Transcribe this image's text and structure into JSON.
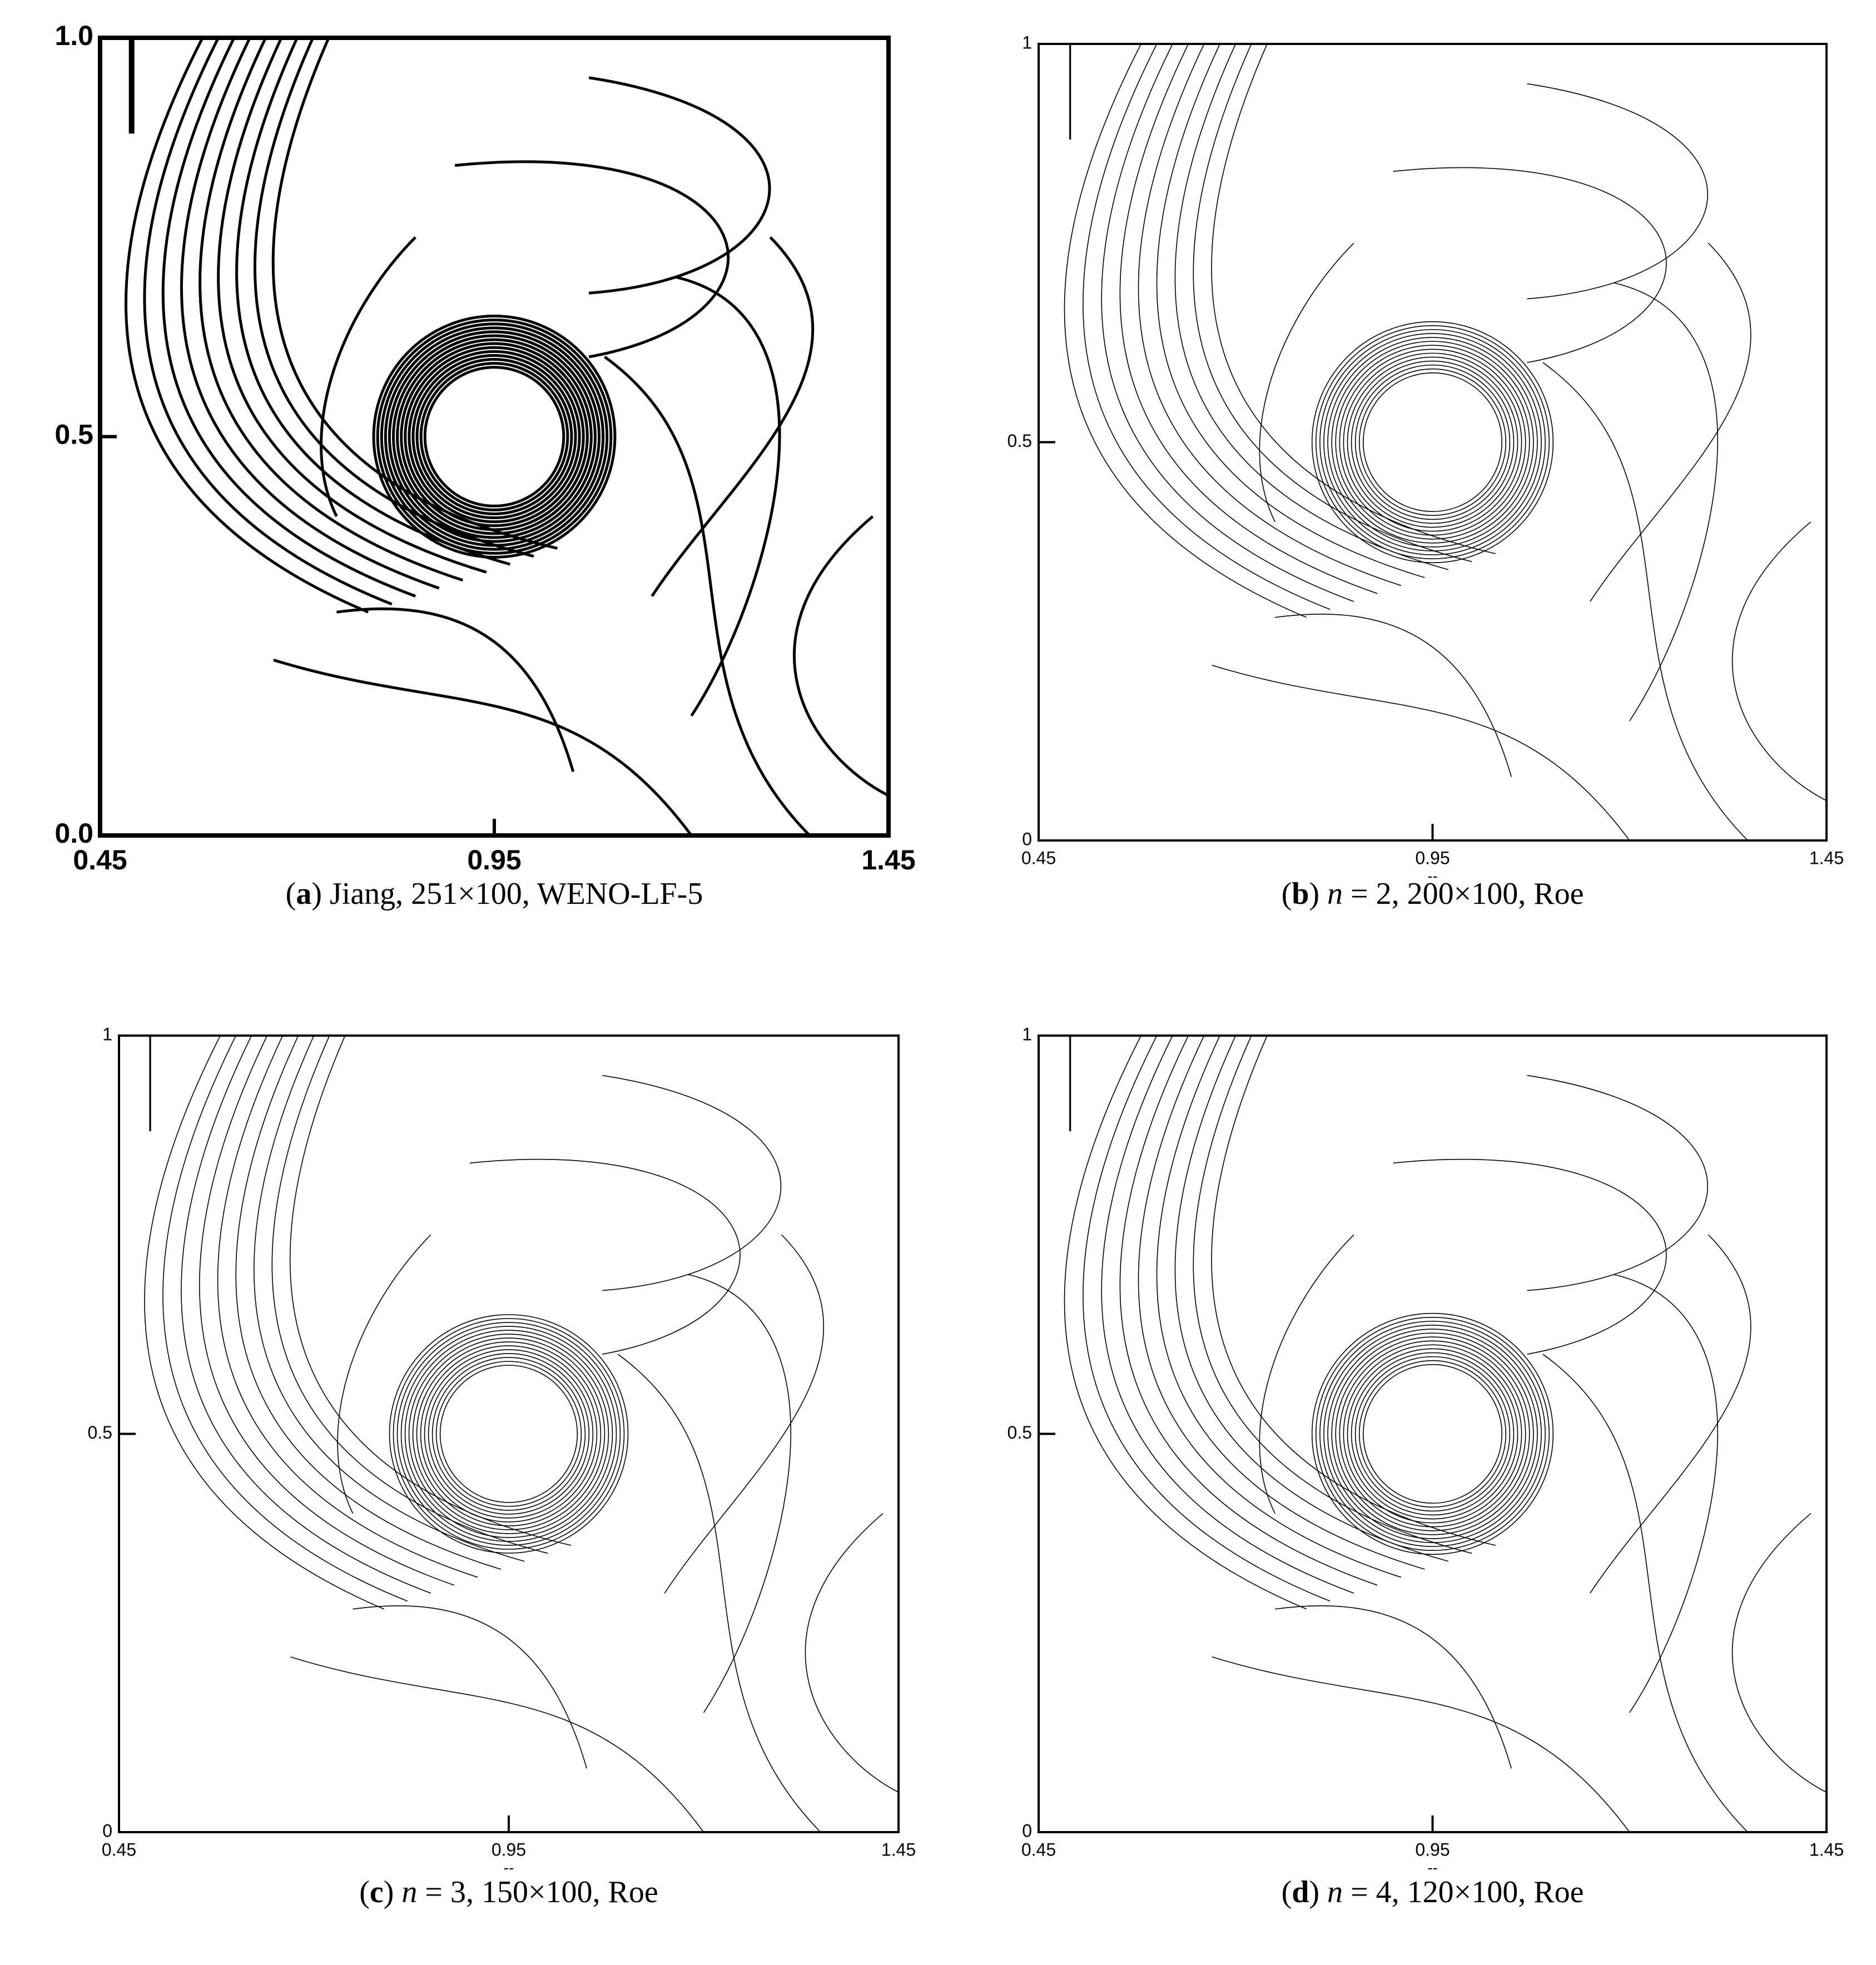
{
  "chart_data": [
    {
      "type": "contour",
      "xlim": [
        0.45,
        1.45
      ],
      "ylim": [
        0,
        1
      ],
      "xticks": [
        0.45,
        0.95,
        1.45
      ],
      "yticks": [
        {
          "value": 0,
          "label": "0.0"
        },
        {
          "value": 0.5,
          "label": "0.5"
        },
        {
          "value": 1,
          "label": "1.0"
        }
      ],
      "tick_font_weight": "bold",
      "caption": [
        {
          "text": "("
        },
        {
          "text": "a",
          "style": "bold"
        },
        {
          "text": ") Jiang, 251×100, WENO-LF-5"
        }
      ]
    },
    {
      "type": "contour",
      "xlim": [
        0.45,
        1.45
      ],
      "ylim": [
        0,
        1
      ],
      "xticks": [
        0.45,
        0.95,
        1.45
      ],
      "yticks": [
        0,
        0.5,
        1
      ],
      "xlabel": "--",
      "tick_font_weight": "normal",
      "caption": [
        {
          "text": "("
        },
        {
          "text": "b",
          "style": "bold"
        },
        {
          "text": ") "
        },
        {
          "text": "n",
          "style": "italic"
        },
        {
          "text": " = 2, 200×100, Roe"
        }
      ]
    },
    {
      "type": "contour",
      "xlim": [
        0.45,
        1.45
      ],
      "ylim": [
        0,
        1
      ],
      "xticks": [
        0.45,
        0.95,
        1.45
      ],
      "yticks": [
        0,
        0.5,
        1
      ],
      "xlabel": "--",
      "tick_font_weight": "normal",
      "caption": [
        {
          "text": "("
        },
        {
          "text": "c",
          "style": "bold"
        },
        {
          "text": ") "
        },
        {
          "text": "n",
          "style": "italic"
        },
        {
          "text": " = 3, 150×100, Roe"
        }
      ]
    },
    {
      "type": "contour",
      "xlim": [
        0.45,
        1.45
      ],
      "ylim": [
        0,
        1
      ],
      "xticks": [
        0.45,
        0.95,
        1.45
      ],
      "yticks": [
        0,
        0.5,
        1
      ],
      "xlabel": "--",
      "tick_font_weight": "normal",
      "caption": [
        {
          "text": "("
        },
        {
          "text": "d",
          "style": "bold"
        },
        {
          "text": ") "
        },
        {
          "text": "n",
          "style": "italic"
        },
        {
          "text": " = 4, 120×100, Roe"
        }
      ]
    }
  ]
}
